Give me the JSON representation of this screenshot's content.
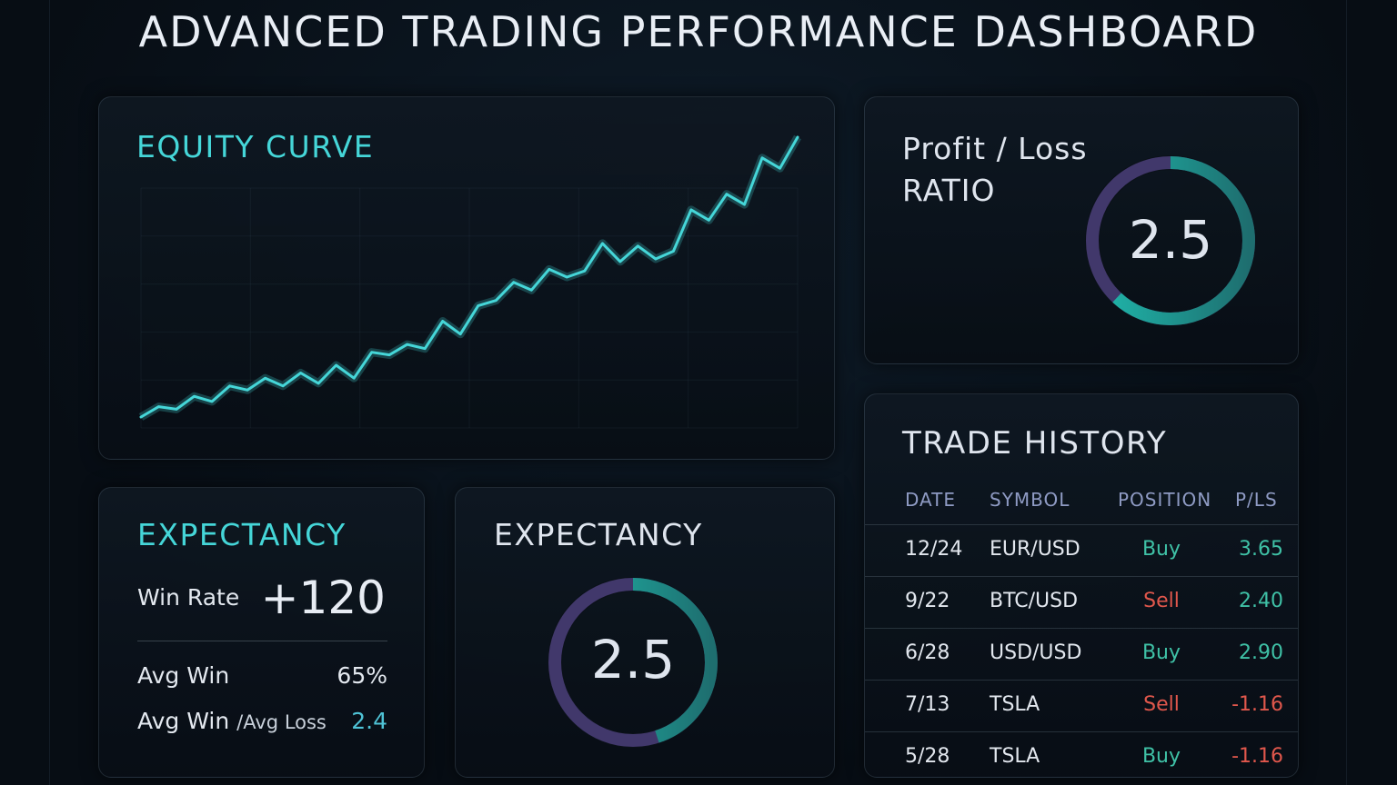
{
  "title": "ADVANCED TRADING PERFORMANCE DASHBOARD",
  "colors": {
    "accent": "#45d6d8",
    "ring_track": "#4b3f7a",
    "buy": "#3fc1a6",
    "sell": "#e0574c",
    "pl_positive": "#3fc1a6",
    "pl_negative": "#e0574c"
  },
  "equity": {
    "heading": "EQUITY CURVE",
    "series": [
      2,
      4,
      3.5,
      6,
      5,
      8,
      7.2,
      9.5,
      8,
      10.5,
      8.5,
      12,
      9.5,
      14.5,
      14,
      16,
      15.2,
      20.5,
      18,
      23.5,
      24.5,
      28,
      26.5,
      30.5,
      29,
      30.2,
      35.5,
      32,
      35,
      32.5,
      34,
      42,
      40,
      45,
      43,
      52,
      50,
      56
    ]
  },
  "pl_ratio": {
    "heading_line1": "Profit / Loss",
    "heading_line2": "RATIO",
    "value": "2.5",
    "fill_fraction": 0.62
  },
  "expectancy_stats": {
    "heading": "EXPECTANCY",
    "win_rate_label": "Win Rate",
    "win_rate_value": "+120",
    "avg_win_label": "Avg Win",
    "avg_win_value": "65%",
    "ratio_label_a": "Avg Win",
    "ratio_label_sep": "/Avg Loss",
    "ratio_value": "2.4"
  },
  "expectancy_ring": {
    "heading": "EXPECTANCY",
    "value": "2.5",
    "fill_fraction": 0.45
  },
  "history": {
    "heading": "TRADE HISTORY",
    "columns": [
      "DATE",
      "SYMBOL",
      "POSITION",
      "P/LS"
    ],
    "rows": [
      {
        "date": "12/24",
        "symbol": "EUR/USD",
        "position": "Buy",
        "pl": "3.65",
        "side": "buy",
        "sign": "pos"
      },
      {
        "date": "9/22",
        "symbol": "BTC/USD",
        "position": "Sell",
        "pl": "2.40",
        "side": "sell",
        "sign": "pos"
      },
      {
        "date": "6/28",
        "symbol": "USD/USD",
        "position": "Buy",
        "pl": "2.90",
        "side": "buy",
        "sign": "pos"
      },
      {
        "date": "7/13",
        "symbol": "TSLA",
        "position": "Sell",
        "pl": "-1.16",
        "side": "sell",
        "sign": "neg"
      },
      {
        "date": "5/28",
        "symbol": "TSLA",
        "position": "Buy",
        "pl": "-1.16",
        "side": "buy",
        "sign": "neg"
      }
    ]
  }
}
